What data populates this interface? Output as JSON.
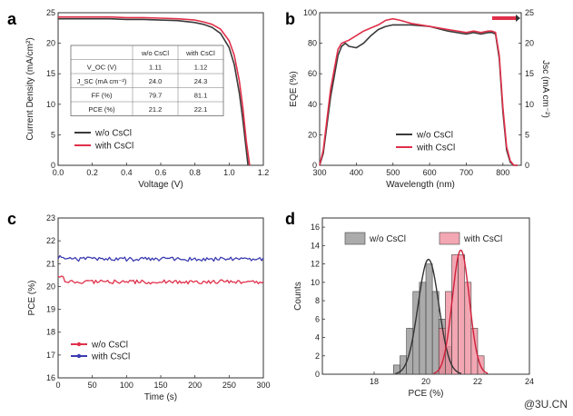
{
  "watermark": "@3U.CN",
  "colors": {
    "black": "#3a3a3a",
    "red": "#e0304a",
    "blue": "#3b3bb0",
    "grey": "#8f8f8f",
    "pink": "#ee8a9a"
  },
  "chart_data": [
    {
      "panel": "a",
      "type": "line",
      "xlabel": "Voltage (V)",
      "ylabel": "Current Density (mA/cm²)",
      "xlim": [
        0.0,
        1.2
      ],
      "ylim": [
        0,
        25
      ],
      "xticks": [
        "0.0",
        "0.2",
        "0.4",
        "0.6",
        "0.8",
        "1.0",
        "1.2"
      ],
      "yticks": [
        "0",
        "5",
        "10",
        "15",
        "20",
        "25"
      ],
      "legend": "bottom-left",
      "series": [
        {
          "name": "w/o CsCl",
          "color": "#3a3a3a",
          "x": [
            0,
            0.1,
            0.2,
            0.3,
            0.4,
            0.5,
            0.6,
            0.7,
            0.8,
            0.85,
            0.9,
            0.95,
            1.0,
            1.03,
            1.06,
            1.08,
            1.1,
            1.11
          ],
          "y": [
            24.0,
            24.0,
            24.0,
            24.0,
            23.9,
            23.9,
            23.8,
            23.7,
            23.4,
            23.1,
            22.6,
            21.6,
            19.3,
            16.5,
            11.8,
            7.5,
            2.5,
            0
          ]
        },
        {
          "name": "with CsCl",
          "color": "#e0304a",
          "x": [
            0,
            0.1,
            0.2,
            0.3,
            0.4,
            0.5,
            0.6,
            0.7,
            0.8,
            0.85,
            0.9,
            0.95,
            1.0,
            1.03,
            1.06,
            1.08,
            1.1,
            1.12
          ],
          "y": [
            24.3,
            24.3,
            24.3,
            24.3,
            24.2,
            24.2,
            24.1,
            24.0,
            23.8,
            23.5,
            23.1,
            22.3,
            20.4,
            18.0,
            13.8,
            9.5,
            4.0,
            0
          ]
        }
      ],
      "table": {
        "headers": [
          "",
          "w/o CsCl",
          "with CsCl"
        ],
        "rows": [
          [
            "V_OC (V)",
            "1.11",
            "1.12"
          ],
          [
            "J_SC (mA cm⁻²)",
            "24.0",
            "24.3"
          ],
          [
            "FF (%)",
            "79.7",
            "81.1"
          ],
          [
            "PCE (%)",
            "21.2",
            "22.1"
          ]
        ]
      }
    },
    {
      "panel": "b",
      "type": "line",
      "xlabel": "Wavelength (nm)",
      "ylabel": "EQE (%)",
      "ylabel_right": "Jsc (mA cm⁻²)",
      "xlim": [
        300,
        850
      ],
      "ylim": [
        0,
        100
      ],
      "ylim_right": [
        0,
        25
      ],
      "xticks": [
        "300",
        "400",
        "500",
        "600",
        "700",
        "800"
      ],
      "yticks": [
        "0",
        "20",
        "40",
        "60",
        "80",
        "100"
      ],
      "yticks_right": [
        "0",
        "5",
        "10",
        "15",
        "20",
        "25"
      ],
      "legend": "bottom-left",
      "series": [
        {
          "name": "w/o CsCl",
          "color": "#3a3a3a",
          "x": [
            300,
            310,
            330,
            350,
            360,
            370,
            380,
            400,
            420,
            440,
            460,
            480,
            500,
            520,
            550,
            600,
            650,
            700,
            720,
            740,
            760,
            770,
            780,
            790,
            800,
            810,
            820,
            830,
            840
          ],
          "y": [
            0,
            8,
            45,
            72,
            78,
            80,
            78,
            77,
            80,
            85,
            89,
            91,
            92,
            92,
            92,
            91,
            88,
            86,
            87,
            86,
            87,
            87,
            86,
            70,
            35,
            10,
            2,
            0,
            0
          ]
        },
        {
          "name": "with CsCl",
          "color": "#e0304a",
          "x": [
            300,
            310,
            330,
            350,
            360,
            370,
            380,
            400,
            420,
            440,
            460,
            480,
            500,
            520,
            550,
            600,
            650,
            700,
            720,
            740,
            760,
            770,
            780,
            790,
            800,
            810,
            820,
            830,
            840
          ],
          "y": [
            0,
            10,
            50,
            76,
            80,
            81,
            82,
            85,
            88,
            90,
            92,
            95,
            96,
            95,
            93,
            91,
            89,
            87,
            88,
            87,
            88,
            88,
            87,
            72,
            38,
            12,
            3,
            0,
            0
          ]
        }
      ]
    },
    {
      "panel": "c",
      "type": "line",
      "xlabel": "Time (s)",
      "ylabel": "PCE (%)",
      "xlim": [
        0,
        300
      ],
      "ylim": [
        16,
        23
      ],
      "xticks": [
        "0",
        "50",
        "100",
        "150",
        "200",
        "250",
        "300"
      ],
      "yticks": [
        "16",
        "17",
        "18",
        "19",
        "20",
        "21",
        "22",
        "23"
      ],
      "legend": "bottom-left",
      "series": [
        {
          "name": "w/o CsCl",
          "color": "#e0304a",
          "mean": 20.2,
          "start": 20.5
        },
        {
          "name": "with CsCl",
          "color": "#3b3bb0",
          "mean": 21.2,
          "start": 21.3
        }
      ]
    },
    {
      "panel": "d",
      "type": "bar",
      "xlabel": "PCE (%)",
      "ylabel": "Counts",
      "xlim": [
        16,
        24
      ],
      "ylim": [
        0,
        17
      ],
      "xticks": [
        "18",
        "20",
        "22",
        "24"
      ],
      "yticks": [
        "0",
        "2",
        "4",
        "6",
        "8",
        "10",
        "12",
        "14",
        "16"
      ],
      "legend": "top",
      "bin_width": 0.25,
      "series": [
        {
          "name": "w/o CsCl",
          "color": "#8f8f8f",
          "bins": [
            18.75,
            19.0,
            19.25,
            19.5,
            19.75,
            20.0,
            20.25,
            20.5,
            20.75
          ],
          "counts": [
            1,
            2,
            5,
            9,
            10,
            12,
            9,
            6,
            3
          ],
          "fit": {
            "mu": 20.1,
            "sigma": 0.4,
            "peak": 12.5
          }
        },
        {
          "name": "with CsCl",
          "color": "#ee8a9a",
          "bins": [
            20.5,
            20.75,
            21.0,
            21.25,
            21.5,
            21.75,
            22.0
          ],
          "counts": [
            5,
            9,
            13,
            13,
            10,
            5,
            2
          ],
          "fit": {
            "mu": 21.35,
            "sigma": 0.33,
            "peak": 13.5
          }
        }
      ]
    }
  ],
  "labels": {
    "a": "a",
    "b": "b",
    "c": "c",
    "d": "d"
  }
}
